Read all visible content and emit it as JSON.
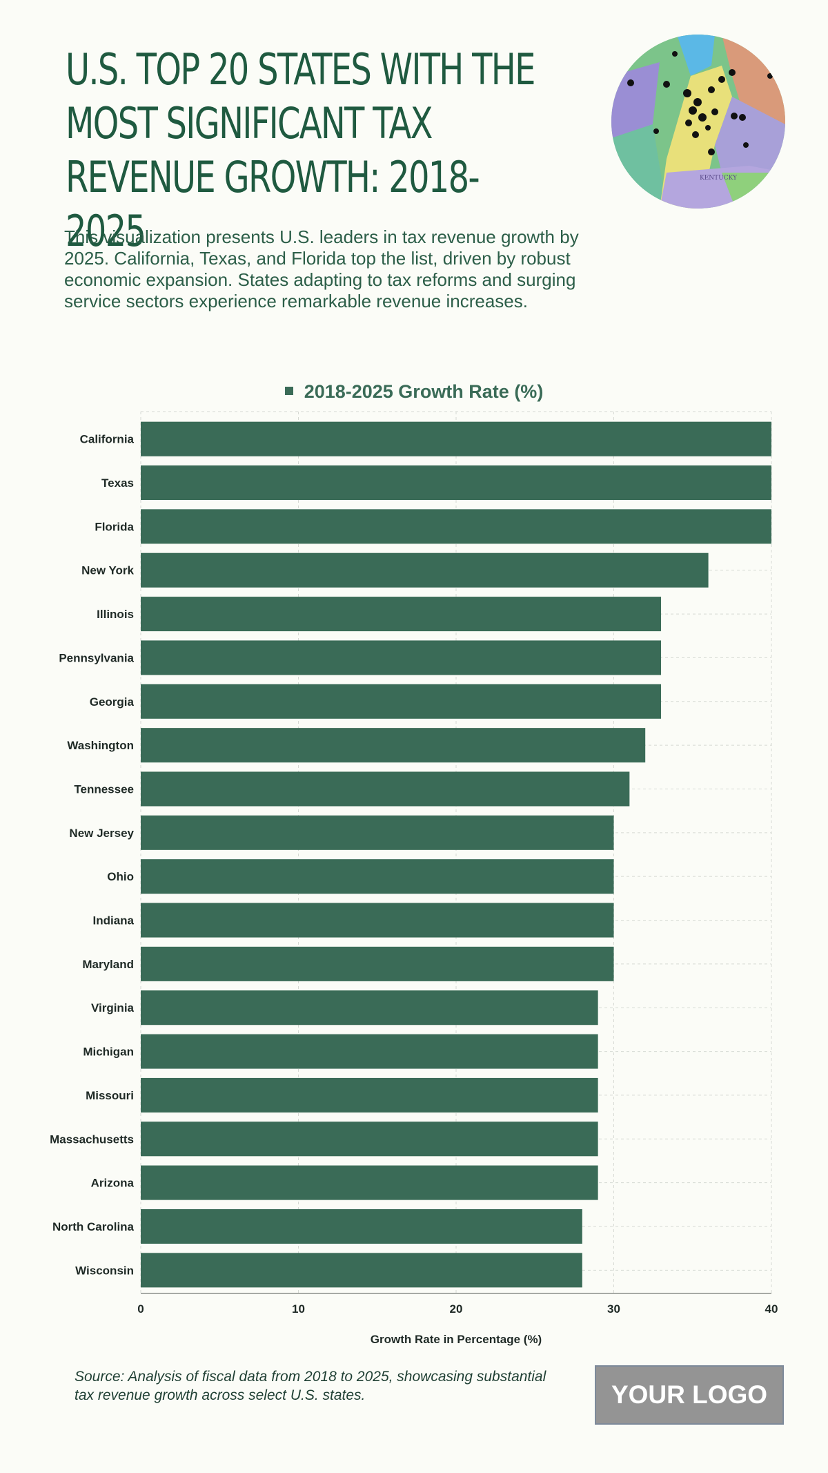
{
  "header": {
    "title": "U.S. TOP 20 STATES WITH THE MOST SIGNIFICANT TAX REVENUE GROWTH: 2018-2025",
    "subtitle": "This visualization presents U.S. leaders in tax revenue growth by 2025. California, Texas, and Florida top the list, driven by robust economic expansion. States adapting to tax reforms and surging service sectors experience remarkable revenue increases."
  },
  "map_image": {
    "icon": "us-map-with-pins-image",
    "map_label": "KENTUCKY"
  },
  "colors": {
    "bar": "#3a6b57",
    "title": "#1f5a40",
    "background": "#fbfcf7",
    "grid": "#d6d9d3"
  },
  "chart_data": {
    "type": "bar",
    "orientation": "horizontal",
    "legend_position": "top-center",
    "grid": true,
    "series": [
      {
        "name": "2018-2025 Growth Rate (%)",
        "values": [
          40,
          40,
          40,
          36,
          33,
          33,
          33,
          32,
          31,
          30,
          30,
          30,
          30,
          29,
          29,
          29,
          29,
          29,
          28,
          28
        ]
      }
    ],
    "categories": [
      "California",
      "Texas",
      "Florida",
      "New York",
      "Illinois",
      "Pennsylvania",
      "Georgia",
      "Washington",
      "Tennessee",
      "New Jersey",
      "Ohio",
      "Indiana",
      "Maryland",
      "Virginia",
      "Michigan",
      "Missouri",
      "Massachusetts",
      "Arizona",
      "North Carolina",
      "Wisconsin"
    ],
    "xlabel": "Growth Rate in Percentage (%)",
    "ylabel": "",
    "xlim": [
      0,
      40
    ],
    "xticks": [
      "0",
      "10",
      "20",
      "30",
      "40"
    ]
  },
  "footer": {
    "source": "Source: Analysis of fiscal data from 2018 to 2025, showcasing substantial tax revenue growth across select U.S. states.",
    "logo_text": "YOUR LOGO"
  }
}
